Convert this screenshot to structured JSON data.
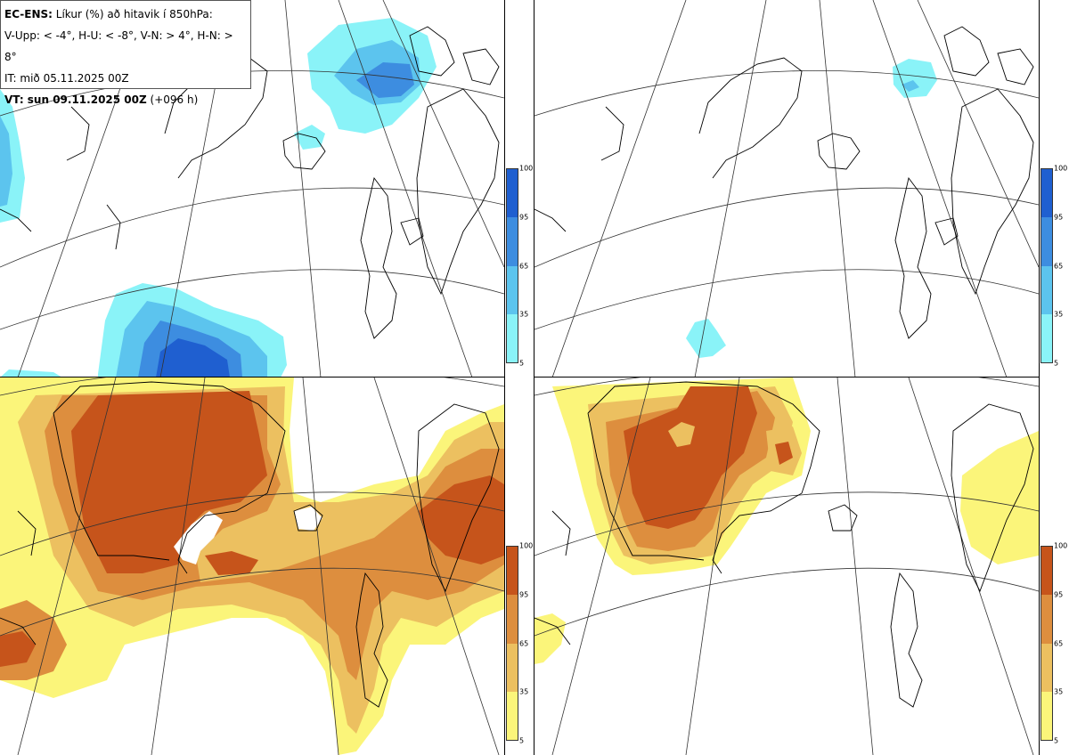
{
  "header": {
    "line1_bold": "EC-ENS:",
    "line1_rest": "Líkur (%) að hitavik í 850hPa:",
    "line2": "V-Upp: < -4°, H-U: < -8°, V-N: > 4°, H-N: > 8°",
    "line3": "IT: mið 05.11.2025 00Z",
    "line4_bold": "VT: sun 09.11.2025 00Z",
    "line4_rest": "(+096 h)"
  },
  "colorbar_cold": {
    "ticks": [
      "100",
      "95",
      "65",
      "35",
      "5"
    ],
    "colors": [
      "#1f5fd0",
      "#3d8de0",
      "#5cc4ee",
      "#8af3f8"
    ]
  },
  "colorbar_warm": {
    "ticks": [
      "100",
      "95",
      "65",
      "35",
      "5"
    ],
    "colors": [
      "#c6541b",
      "#dd8e3e",
      "#ecc060",
      "#fbf57a"
    ]
  },
  "panels": [
    {
      "name": "upper-left",
      "anomaly": "V-Upp"
    },
    {
      "name": "upper-right",
      "anomaly": "H-U"
    },
    {
      "name": "lower-left",
      "anomaly": "V-N"
    },
    {
      "name": "lower-right",
      "anomaly": "H-N"
    }
  ]
}
